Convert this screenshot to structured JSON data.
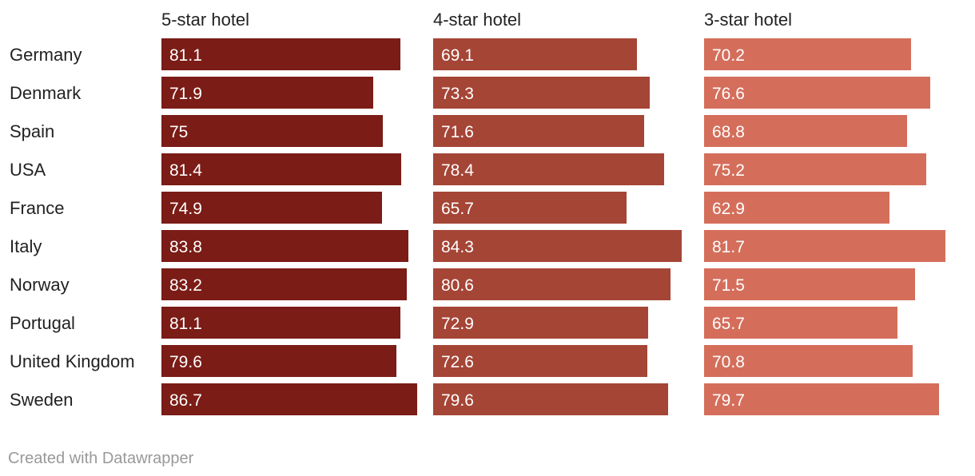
{
  "chart_data": {
    "type": "bar",
    "orientation": "horizontal",
    "layout": "small-multiples",
    "categories": [
      "Germany",
      "Denmark",
      "Spain",
      "USA",
      "France",
      "Italy",
      "Norway",
      "Portugal",
      "United Kingdom",
      "Sweden"
    ],
    "series": [
      {
        "name": "5-star hotel",
        "color": "#7b1c16",
        "values": [
          81.1,
          71.9,
          75,
          81.4,
          74.9,
          83.8,
          83.2,
          81.1,
          79.6,
          86.7
        ]
      },
      {
        "name": "4-star hotel",
        "color": "#a54536",
        "values": [
          69.1,
          73.3,
          71.6,
          78.4,
          65.7,
          84.3,
          80.6,
          72.9,
          72.6,
          79.6
        ]
      },
      {
        "name": "3-star hotel",
        "color": "#d46e5b",
        "values": [
          70.2,
          76.6,
          68.8,
          75.2,
          62.9,
          81.7,
          71.5,
          65.7,
          70.8,
          79.7
        ]
      }
    ],
    "value_labels": [
      [
        "81.1",
        "71.9",
        "75",
        "81.4",
        "74.9",
        "83.8",
        "83.2",
        "81.1",
        "79.6",
        "86.7"
      ],
      [
        "69.1",
        "73.3",
        "71.6",
        "78.4",
        "65.7",
        "84.3",
        "80.6",
        "72.9",
        "72.6",
        "79.6"
      ],
      [
        "70.2",
        "76.6",
        "68.8",
        "75.2",
        "62.9",
        "81.7",
        "71.5",
        "65.7",
        "70.8",
        "79.7"
      ]
    ],
    "xlim": [
      0,
      86.7
    ],
    "title": "",
    "xlabel": "",
    "ylabel": "",
    "grid": false,
    "legend": "none"
  },
  "footer": {
    "credit": "Created with Datawrapper"
  }
}
